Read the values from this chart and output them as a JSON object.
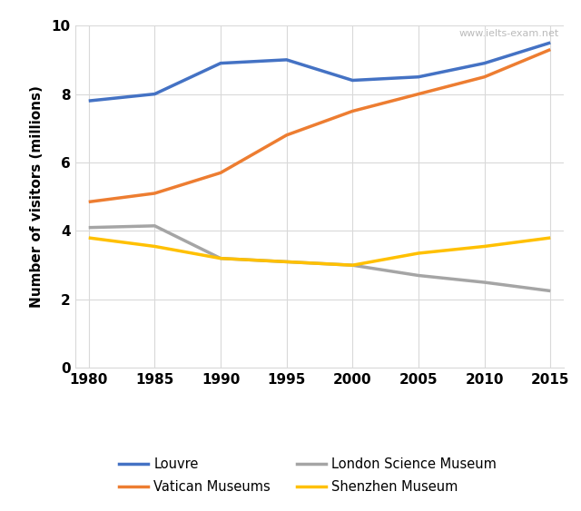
{
  "years": [
    1980,
    1985,
    1990,
    1995,
    2000,
    2005,
    2010,
    2015
  ],
  "series": {
    "Louvre": {
      "values": [
        7.8,
        8.0,
        8.9,
        9.0,
        8.4,
        8.5,
        8.9,
        9.5
      ],
      "color": "#4472C4",
      "linewidth": 2.5
    },
    "Vatican Museums": {
      "values": [
        4.85,
        5.1,
        5.7,
        6.8,
        7.5,
        8.0,
        8.5,
        9.3
      ],
      "color": "#ED7D31",
      "linewidth": 2.5
    },
    "London Science Museum": {
      "values": [
        4.1,
        4.15,
        3.2,
        3.1,
        3.0,
        2.7,
        2.5,
        2.25
      ],
      "color": "#A5A5A5",
      "linewidth": 2.5
    },
    "Shenzhen Museum": {
      "values": [
        3.8,
        3.55,
        3.2,
        3.1,
        3.0,
        3.35,
        3.55,
        3.8
      ],
      "color": "#FFC000",
      "linewidth": 2.5
    }
  },
  "ylabel": "Number of visitors (millions)",
  "ylim": [
    0,
    10
  ],
  "xlim": [
    1979,
    2016
  ],
  "yticks": [
    0,
    2,
    4,
    6,
    8,
    10
  ],
  "xticks": [
    1980,
    1985,
    1990,
    1995,
    2000,
    2005,
    2010,
    2015
  ],
  "grid_color": "#D9D9D9",
  "background_color": "#FFFFFF",
  "watermark": "www.ielts-exam.net",
  "legend_row1": [
    "Louvre",
    "Vatican Museums"
  ],
  "legend_row2": [
    "London Science Museum",
    "Shenzhen Museum"
  ],
  "legend_order": [
    "Louvre",
    "Vatican Museums",
    "London Science Museum",
    "Shenzhen Museum"
  ]
}
